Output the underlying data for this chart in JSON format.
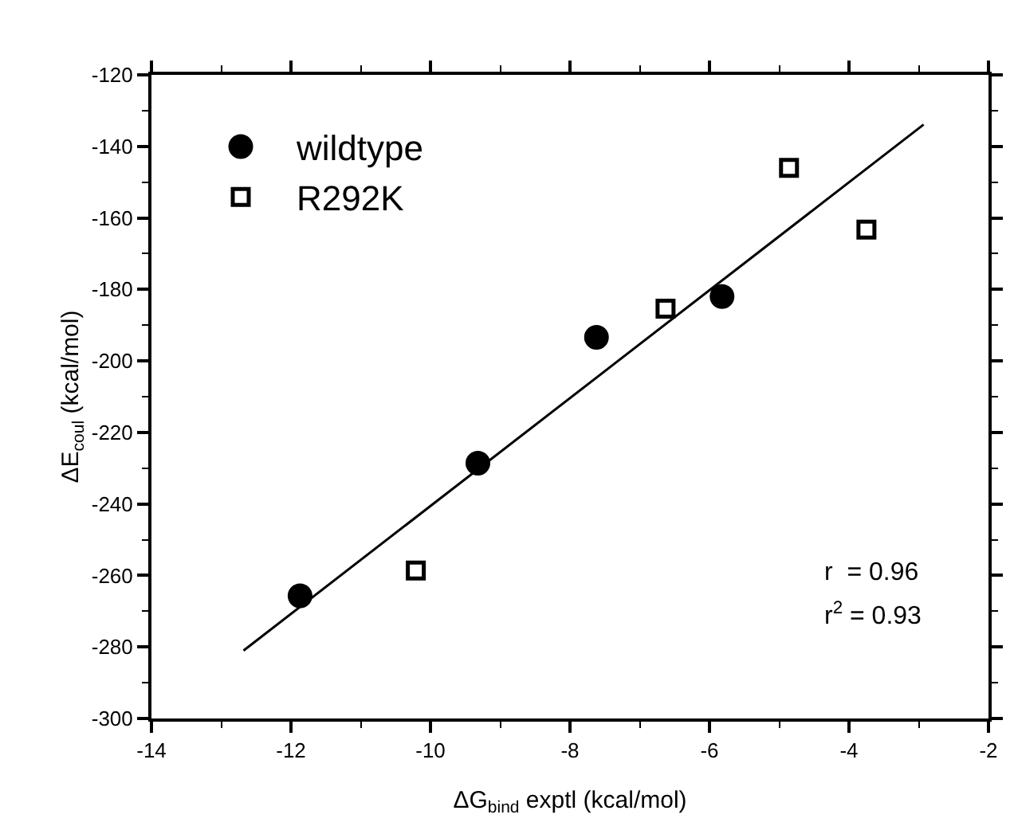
{
  "chart_data": {
    "type": "scatter",
    "xlabel": "ΔG$_{bind}$ exptl (kcal/mol)",
    "ylabel": "ΔE$_{coul}$ (kcal/mol)",
    "xlim": [
      -14,
      -2
    ],
    "xticks": [
      -14,
      -12,
      -10,
      -8,
      -6,
      -4,
      -2
    ],
    "ylim": [
      -300,
      -120
    ],
    "yticks": [
      -300,
      -280,
      -260,
      -240,
      -220,
      -200,
      -180,
      -160,
      -140,
      -120
    ],
    "grid": false,
    "legend": "top left",
    "series": [
      {
        "name": "wildtype",
        "color": "#000000",
        "marker": "circle",
        "x": [
          -11.87,
          -9.32,
          -7.62,
          -5.82
        ],
        "values": [
          -265.7,
          -228.6,
          -193.4,
          -182
        ]
      },
      {
        "name": "R292K",
        "color": "#000000",
        "marker": "square",
        "x": [
          -10.21,
          -6.63,
          -4.86,
          -3.75
        ],
        "values": [
          -258.6,
          -185.4,
          -146,
          -163.3
        ]
      },
      {
        "type": "line",
        "color": "#000000",
        "marker": "none",
        "line_style": "solid",
        "x": [
          -12.68,
          -2.93
        ],
        "values": [
          -281,
          -133.9
        ]
      }
    ],
    "annotations": [
      "r  = 0.96",
      "r$^{2}$ = 0.93"
    ]
  }
}
